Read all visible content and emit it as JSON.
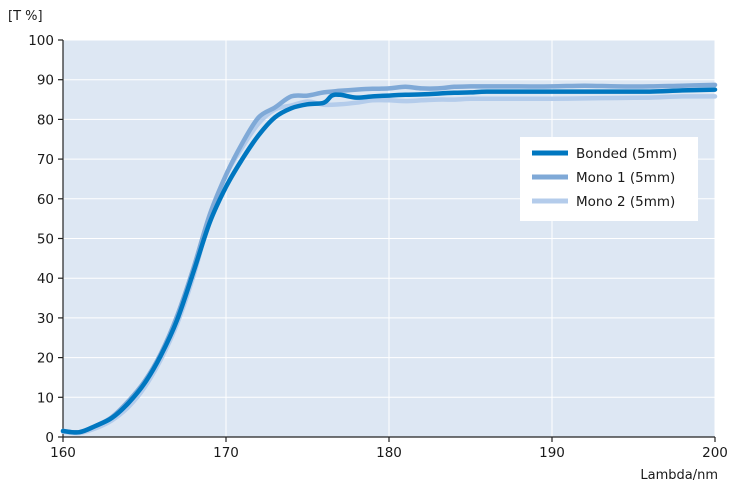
{
  "chart_data": {
    "type": "line",
    "ylabel": "[T %]",
    "xlabel": "Lambda/nm",
    "xlim": [
      160,
      200
    ],
    "ylim": [
      0,
      100
    ],
    "x_ticks": [
      160,
      170,
      180,
      190,
      200
    ],
    "y_ticks": [
      0,
      10,
      20,
      30,
      40,
      50,
      60,
      70,
      80,
      90,
      100
    ],
    "grid": true,
    "legend_position": "right",
    "series": [
      {
        "name": "Bonded (5mm)",
        "color": "#0077c0",
        "points": [
          [
            160,
            1.5
          ],
          [
            161,
            1.2
          ],
          [
            162,
            2.8
          ],
          [
            163,
            4.8
          ],
          [
            164,
            8.5
          ],
          [
            165,
            13.5
          ],
          [
            166,
            20.5
          ],
          [
            167,
            29.5
          ],
          [
            168,
            41.5
          ],
          [
            169,
            54
          ],
          [
            170,
            63
          ],
          [
            171,
            70
          ],
          [
            172,
            76
          ],
          [
            173,
            80.5
          ],
          [
            174,
            82.8
          ],
          [
            175,
            83.8
          ],
          [
            176,
            84.2
          ],
          [
            176.5,
            86
          ],
          [
            177,
            86.2
          ],
          [
            178,
            85.5
          ],
          [
            179,
            85.8
          ],
          [
            180,
            86
          ],
          [
            181,
            86.2
          ],
          [
            182,
            86.3
          ],
          [
            183,
            86.5
          ],
          [
            184,
            86.7
          ],
          [
            185,
            86.8
          ],
          [
            186,
            87
          ],
          [
            188,
            87
          ],
          [
            190,
            87
          ],
          [
            192,
            87
          ],
          [
            194,
            87
          ],
          [
            196,
            87
          ],
          [
            198,
            87.3
          ],
          [
            200,
            87.5
          ]
        ]
      },
      {
        "name": "Mono 1 (5mm)",
        "color": "#7fa9d7",
        "points": [
          [
            160,
            1.5
          ],
          [
            161,
            1.2
          ],
          [
            162,
            2.8
          ],
          [
            163,
            5
          ],
          [
            164,
            9
          ],
          [
            165,
            14
          ],
          [
            166,
            21
          ],
          [
            167,
            30.5
          ],
          [
            168,
            42.5
          ],
          [
            169,
            56
          ],
          [
            170,
            66
          ],
          [
            171,
            74
          ],
          [
            172,
            80.5
          ],
          [
            173,
            83
          ],
          [
            174,
            85.8
          ],
          [
            175,
            86
          ],
          [
            176,
            86.8
          ],
          [
            177,
            87.2
          ],
          [
            178,
            87.5
          ],
          [
            179,
            87.7
          ],
          [
            180,
            87.8
          ],
          [
            181,
            88.2
          ],
          [
            182,
            87.8
          ],
          [
            183,
            87.8
          ],
          [
            184,
            88.2
          ],
          [
            185,
            88.3
          ],
          [
            186,
            88.3
          ],
          [
            188,
            88.3
          ],
          [
            190,
            88.3
          ],
          [
            192,
            88.5
          ],
          [
            194,
            88.3
          ],
          [
            196,
            88.3
          ],
          [
            198,
            88.5
          ],
          [
            200,
            88.7
          ]
        ]
      },
      {
        "name": "Mono 2 (5mm)",
        "color": "#b4cceb",
        "points": [
          [
            160,
            1.3
          ],
          [
            161,
            1
          ],
          [
            162,
            2.2
          ],
          [
            163,
            4.2
          ],
          [
            164,
            7.5
          ],
          [
            165,
            12.5
          ],
          [
            166,
            19.5
          ],
          [
            167,
            28.5
          ],
          [
            168,
            40.5
          ],
          [
            169,
            55
          ],
          [
            170,
            66
          ],
          [
            171,
            73
          ],
          [
            172,
            79
          ],
          [
            173,
            82.5
          ],
          [
            174,
            83.5
          ],
          [
            175,
            84.5
          ],
          [
            176,
            83.7
          ],
          [
            177,
            83.8
          ],
          [
            178,
            84.2
          ],
          [
            179,
            84.8
          ],
          [
            180,
            84.8
          ],
          [
            181,
            84.6
          ],
          [
            182,
            84.8
          ],
          [
            183,
            85
          ],
          [
            184,
            85
          ],
          [
            185,
            85.2
          ],
          [
            186,
            85.2
          ],
          [
            188,
            85.2
          ],
          [
            190,
            85.2
          ],
          [
            192,
            85.3
          ],
          [
            194,
            85.4
          ],
          [
            196,
            85.5
          ],
          [
            198,
            85.8
          ],
          [
            200,
            85.8
          ]
        ]
      }
    ]
  }
}
